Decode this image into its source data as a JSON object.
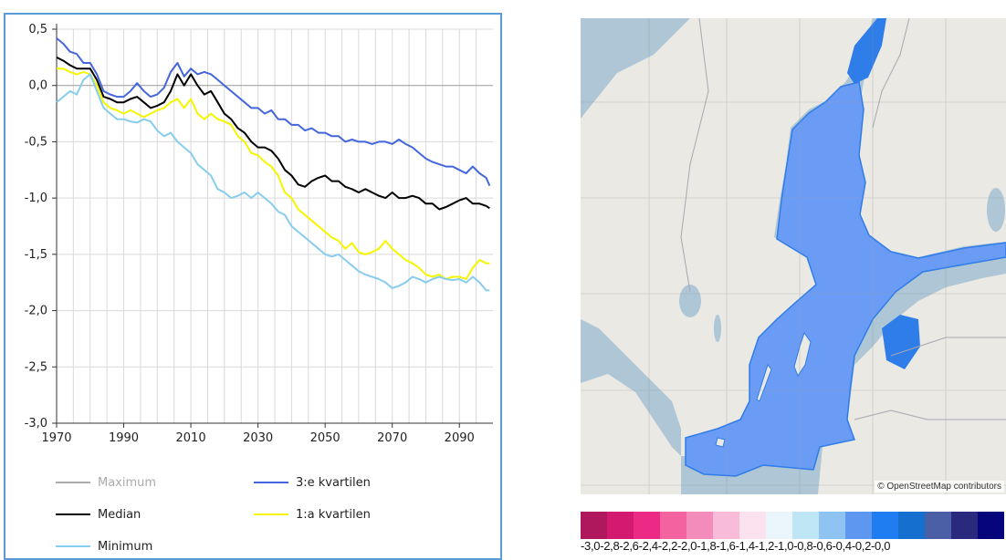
{
  "chart_data": {
    "type": "line",
    "x_ticks": [
      1970,
      1990,
      2010,
      2030,
      2050,
      2070,
      2090
    ],
    "y_ticks": [
      "0,5",
      "0,0",
      "-0,5",
      "-1,0",
      "-1,5",
      "-2,0",
      "-2,5",
      "-3,0"
    ],
    "y_tick_values": [
      0.5,
      0.0,
      -0.5,
      -1.0,
      -1.5,
      -2.0,
      -2.5,
      -3.0
    ],
    "xlim": [
      1970,
      2100
    ],
    "ylim": [
      -3.0,
      0.5
    ],
    "grid": true,
    "series": [
      {
        "name": "Maximum",
        "color": "#aaaaaa",
        "show_line": false,
        "points": []
      },
      {
        "name": "3:e kvartilen",
        "color": "#4466dd",
        "show_line": true,
        "points": [
          [
            1970,
            0.42
          ],
          [
            1972,
            0.37
          ],
          [
            1974,
            0.3
          ],
          [
            1976,
            0.28
          ],
          [
            1978,
            0.2
          ],
          [
            1980,
            0.2
          ],
          [
            1982,
            0.1
          ],
          [
            1984,
            -0.05
          ],
          [
            1986,
            -0.08
          ],
          [
            1988,
            -0.1
          ],
          [
            1990,
            -0.1
          ],
          [
            1992,
            -0.05
          ],
          [
            1994,
            0.02
          ],
          [
            1996,
            -0.05
          ],
          [
            1998,
            -0.1
          ],
          [
            2000,
            -0.08
          ],
          [
            2002,
            -0.02
          ],
          [
            2004,
            0.12
          ],
          [
            2006,
            0.2
          ],
          [
            2008,
            0.08
          ],
          [
            2010,
            0.15
          ],
          [
            2012,
            0.1
          ],
          [
            2014,
            0.12
          ],
          [
            2016,
            0.1
          ],
          [
            2018,
            0.05
          ],
          [
            2020,
            0.0
          ],
          [
            2022,
            -0.05
          ],
          [
            2024,
            -0.1
          ],
          [
            2026,
            -0.15
          ],
          [
            2028,
            -0.2
          ],
          [
            2030,
            -0.2
          ],
          [
            2032,
            -0.25
          ],
          [
            2034,
            -0.22
          ],
          [
            2036,
            -0.3
          ],
          [
            2038,
            -0.3
          ],
          [
            2040,
            -0.35
          ],
          [
            2042,
            -0.35
          ],
          [
            2044,
            -0.4
          ],
          [
            2046,
            -0.38
          ],
          [
            2048,
            -0.42
          ],
          [
            2050,
            -0.42
          ],
          [
            2052,
            -0.45
          ],
          [
            2054,
            -0.45
          ],
          [
            2056,
            -0.5
          ],
          [
            2058,
            -0.48
          ],
          [
            2060,
            -0.5
          ],
          [
            2062,
            -0.5
          ],
          [
            2064,
            -0.52
          ],
          [
            2066,
            -0.5
          ],
          [
            2068,
            -0.5
          ],
          [
            2070,
            -0.52
          ],
          [
            2072,
            -0.48
          ],
          [
            2074,
            -0.52
          ],
          [
            2076,
            -0.55
          ],
          [
            2078,
            -0.6
          ],
          [
            2080,
            -0.65
          ],
          [
            2082,
            -0.68
          ],
          [
            2084,
            -0.7
          ],
          [
            2086,
            -0.72
          ],
          [
            2088,
            -0.72
          ],
          [
            2090,
            -0.75
          ],
          [
            2092,
            -0.78
          ],
          [
            2094,
            -0.72
          ],
          [
            2096,
            -0.78
          ],
          [
            2098,
            -0.82
          ],
          [
            2099,
            -0.89
          ]
        ]
      },
      {
        "name": "Median",
        "color": "#000000",
        "show_line": true,
        "points": [
          [
            1970,
            0.25
          ],
          [
            1972,
            0.22
          ],
          [
            1974,
            0.18
          ],
          [
            1976,
            0.15
          ],
          [
            1978,
            0.15
          ],
          [
            1980,
            0.15
          ],
          [
            1982,
            0.05
          ],
          [
            1984,
            -0.1
          ],
          [
            1986,
            -0.12
          ],
          [
            1988,
            -0.15
          ],
          [
            1990,
            -0.15
          ],
          [
            1992,
            -0.12
          ],
          [
            1994,
            -0.1
          ],
          [
            1996,
            -0.15
          ],
          [
            1998,
            -0.2
          ],
          [
            2000,
            -0.18
          ],
          [
            2002,
            -0.15
          ],
          [
            2004,
            -0.05
          ],
          [
            2006,
            0.1
          ],
          [
            2008,
            0.0
          ],
          [
            2010,
            0.1
          ],
          [
            2012,
            0.0
          ],
          [
            2014,
            -0.08
          ],
          [
            2016,
            -0.05
          ],
          [
            2018,
            -0.15
          ],
          [
            2020,
            -0.25
          ],
          [
            2022,
            -0.3
          ],
          [
            2024,
            -0.38
          ],
          [
            2026,
            -0.42
          ],
          [
            2028,
            -0.5
          ],
          [
            2030,
            -0.55
          ],
          [
            2032,
            -0.55
          ],
          [
            2034,
            -0.58
          ],
          [
            2036,
            -0.65
          ],
          [
            2038,
            -0.75
          ],
          [
            2040,
            -0.8
          ],
          [
            2042,
            -0.88
          ],
          [
            2044,
            -0.9
          ],
          [
            2046,
            -0.85
          ],
          [
            2048,
            -0.82
          ],
          [
            2050,
            -0.8
          ],
          [
            2052,
            -0.85
          ],
          [
            2054,
            -0.85
          ],
          [
            2056,
            -0.9
          ],
          [
            2058,
            -0.92
          ],
          [
            2060,
            -0.95
          ],
          [
            2062,
            -0.92
          ],
          [
            2064,
            -0.95
          ],
          [
            2066,
            -0.98
          ],
          [
            2068,
            -1.0
          ],
          [
            2070,
            -0.95
          ],
          [
            2072,
            -1.0
          ],
          [
            2074,
            -1.0
          ],
          [
            2076,
            -0.98
          ],
          [
            2078,
            -1.0
          ],
          [
            2080,
            -1.05
          ],
          [
            2082,
            -1.05
          ],
          [
            2084,
            -1.1
          ],
          [
            2086,
            -1.08
          ],
          [
            2088,
            -1.05
          ],
          [
            2090,
            -1.02
          ],
          [
            2092,
            -1.0
          ],
          [
            2094,
            -1.05
          ],
          [
            2096,
            -1.05
          ],
          [
            2098,
            -1.07
          ],
          [
            2099,
            -1.09
          ]
        ]
      },
      {
        "name": "1:a kvartilen",
        "color": "#f5f500",
        "show_line": true,
        "points": [
          [
            1970,
            0.15
          ],
          [
            1972,
            0.15
          ],
          [
            1974,
            0.12
          ],
          [
            1976,
            0.1
          ],
          [
            1978,
            0.12
          ],
          [
            1980,
            0.1
          ],
          [
            1982,
            0.0
          ],
          [
            1984,
            -0.15
          ],
          [
            1986,
            -0.2
          ],
          [
            1988,
            -0.22
          ],
          [
            1990,
            -0.25
          ],
          [
            1992,
            -0.22
          ],
          [
            1994,
            -0.25
          ],
          [
            1996,
            -0.28
          ],
          [
            1998,
            -0.25
          ],
          [
            2000,
            -0.22
          ],
          [
            2002,
            -0.2
          ],
          [
            2004,
            -0.15
          ],
          [
            2006,
            -0.12
          ],
          [
            2008,
            -0.2
          ],
          [
            2010,
            -0.12
          ],
          [
            2012,
            -0.25
          ],
          [
            2014,
            -0.3
          ],
          [
            2016,
            -0.25
          ],
          [
            2018,
            -0.3
          ],
          [
            2020,
            -0.32
          ],
          [
            2022,
            -0.35
          ],
          [
            2024,
            -0.45
          ],
          [
            2026,
            -0.5
          ],
          [
            2028,
            -0.6
          ],
          [
            2030,
            -0.62
          ],
          [
            2032,
            -0.68
          ],
          [
            2034,
            -0.72
          ],
          [
            2036,
            -0.8
          ],
          [
            2038,
            -0.95
          ],
          [
            2040,
            -1.0
          ],
          [
            2042,
            -1.1
          ],
          [
            2044,
            -1.15
          ],
          [
            2046,
            -1.2
          ],
          [
            2048,
            -1.25
          ],
          [
            2050,
            -1.3
          ],
          [
            2052,
            -1.35
          ],
          [
            2054,
            -1.38
          ],
          [
            2056,
            -1.45
          ],
          [
            2058,
            -1.4
          ],
          [
            2060,
            -1.48
          ],
          [
            2062,
            -1.5
          ],
          [
            2064,
            -1.48
          ],
          [
            2066,
            -1.45
          ],
          [
            2068,
            -1.38
          ],
          [
            2070,
            -1.45
          ],
          [
            2072,
            -1.5
          ],
          [
            2074,
            -1.55
          ],
          [
            2076,
            -1.58
          ],
          [
            2078,
            -1.62
          ],
          [
            2080,
            -1.68
          ],
          [
            2082,
            -1.7
          ],
          [
            2084,
            -1.68
          ],
          [
            2086,
            -1.72
          ],
          [
            2088,
            -1.7
          ],
          [
            2090,
            -1.7
          ],
          [
            2092,
            -1.72
          ],
          [
            2094,
            -1.62
          ],
          [
            2096,
            -1.55
          ],
          [
            2098,
            -1.58
          ],
          [
            2099,
            -1.58
          ]
        ]
      },
      {
        "name": "Minimum",
        "color": "#88ccee",
        "show_line": true,
        "points": [
          [
            1970,
            -0.15
          ],
          [
            1972,
            -0.1
          ],
          [
            1974,
            -0.05
          ],
          [
            1976,
            -0.08
          ],
          [
            1978,
            0.05
          ],
          [
            1980,
            0.1
          ],
          [
            1982,
            -0.05
          ],
          [
            1984,
            -0.2
          ],
          [
            1986,
            -0.25
          ],
          [
            1988,
            -0.3
          ],
          [
            1990,
            -0.3
          ],
          [
            1992,
            -0.32
          ],
          [
            1994,
            -0.33
          ],
          [
            1996,
            -0.3
          ],
          [
            1998,
            -0.32
          ],
          [
            2000,
            -0.4
          ],
          [
            2002,
            -0.45
          ],
          [
            2004,
            -0.42
          ],
          [
            2006,
            -0.5
          ],
          [
            2008,
            -0.55
          ],
          [
            2010,
            -0.6
          ],
          [
            2012,
            -0.7
          ],
          [
            2014,
            -0.75
          ],
          [
            2016,
            -0.8
          ],
          [
            2018,
            -0.92
          ],
          [
            2020,
            -0.95
          ],
          [
            2022,
            -1.0
          ],
          [
            2024,
            -0.98
          ],
          [
            2026,
            -0.95
          ],
          [
            2028,
            -1.0
          ],
          [
            2030,
            -0.95
          ],
          [
            2032,
            -1.0
          ],
          [
            2034,
            -1.05
          ],
          [
            2036,
            -1.12
          ],
          [
            2038,
            -1.15
          ],
          [
            2040,
            -1.25
          ],
          [
            2042,
            -1.3
          ],
          [
            2044,
            -1.35
          ],
          [
            2046,
            -1.4
          ],
          [
            2048,
            -1.45
          ],
          [
            2050,
            -1.5
          ],
          [
            2052,
            -1.52
          ],
          [
            2054,
            -1.5
          ],
          [
            2056,
            -1.55
          ],
          [
            2058,
            -1.6
          ],
          [
            2060,
            -1.65
          ],
          [
            2062,
            -1.68
          ],
          [
            2064,
            -1.7
          ],
          [
            2066,
            -1.72
          ],
          [
            2068,
            -1.75
          ],
          [
            2070,
            -1.8
          ],
          [
            2072,
            -1.78
          ],
          [
            2074,
            -1.75
          ],
          [
            2076,
            -1.7
          ],
          [
            2078,
            -1.72
          ],
          [
            2080,
            -1.75
          ],
          [
            2082,
            -1.72
          ],
          [
            2084,
            -1.7
          ],
          [
            2086,
            -1.72
          ],
          [
            2088,
            -1.73
          ],
          [
            2090,
            -1.72
          ],
          [
            2092,
            -1.75
          ],
          [
            2094,
            -1.7
          ],
          [
            2096,
            -1.75
          ],
          [
            2098,
            -1.82
          ],
          [
            2099,
            -1.82
          ]
        ]
      }
    ]
  },
  "map": {
    "credit": "© OpenStreetMap contributors",
    "colors": {
      "water": "#aec6d6",
      "land": "#ebe9e4",
      "sea_light": "#6b9cf5",
      "sea_dark": "#2f7de8",
      "borders": "#a9a6b0"
    }
  },
  "color_scale": {
    "colors": [
      "#b0185e",
      "#d41a70",
      "#ec2a86",
      "#f2639f",
      "#f48cbb",
      "#f8bcd8",
      "#fbe2ee",
      "#eaf6fb",
      "#bfe6f5",
      "#8ec3f2",
      "#5e97f0",
      "#1f7df1",
      "#156fcf",
      "#4a5fa5",
      "#292a7e",
      "#06057c"
    ],
    "label": "-3,0-2,8-2,6-2,4-2,2-2,0-1,8-1,6-1,4-1,2-1,0-0,8-0,6-0,4-0,2-0,0"
  }
}
